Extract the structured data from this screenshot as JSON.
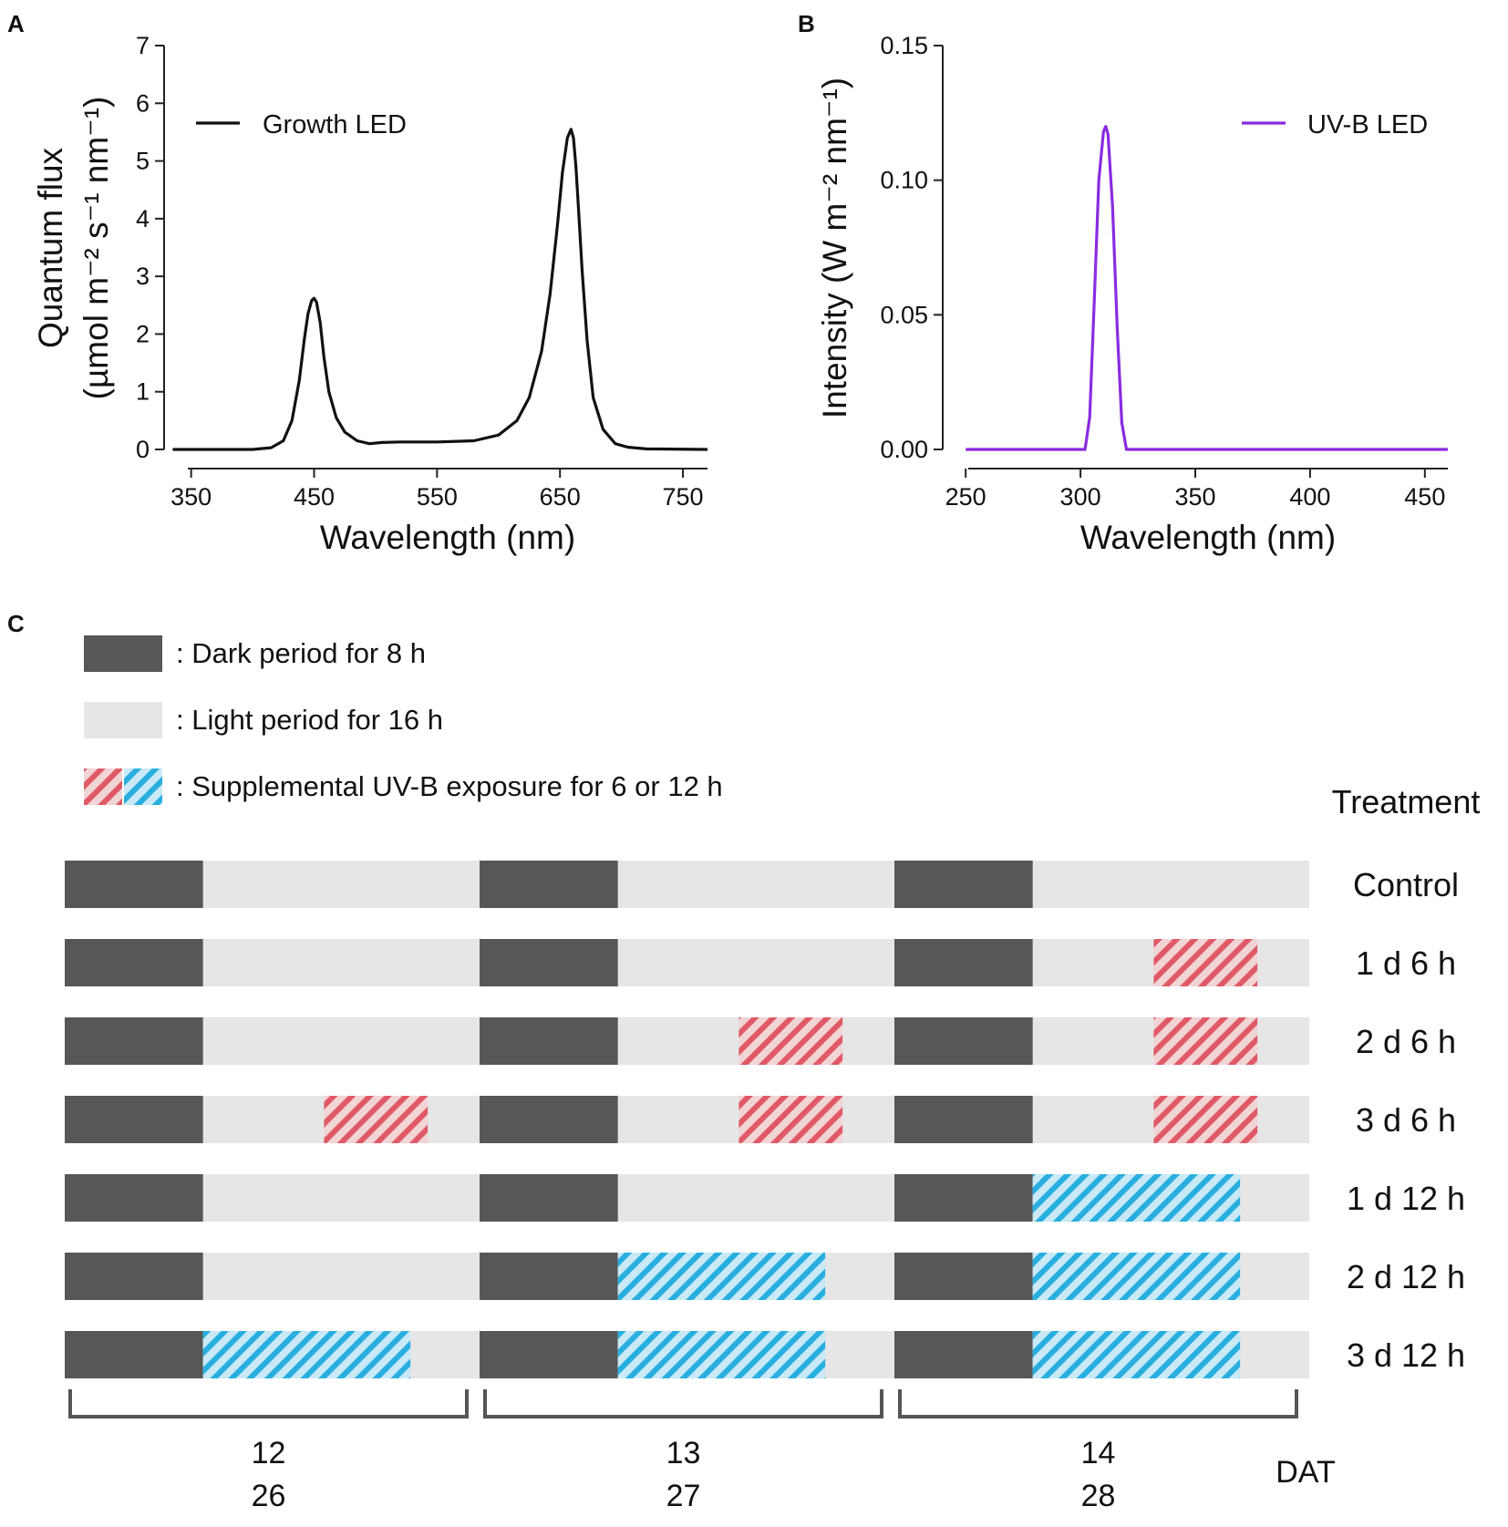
{
  "chart_data": [
    {
      "panel": "A",
      "type": "line",
      "xlabel": "Wavelength (nm)",
      "ylabel_line1": "Quantum flux",
      "ylabel_line2": "(µmol m⁻² s⁻¹ nm⁻¹)",
      "xlim": [
        328,
        770
      ],
      "ylim": [
        0,
        7
      ],
      "xticks": [
        "350",
        "450",
        "550",
        "650",
        "750"
      ],
      "yticks": [
        "0",
        "1",
        "2",
        "3",
        "4",
        "5",
        "6",
        "7"
      ],
      "legend": "Growth LED",
      "legend_position": "top-left",
      "color": "#111111",
      "series": [
        {
          "name": "Growth LED",
          "x": [
            335,
            400,
            415,
            425,
            432,
            438,
            442,
            445,
            448,
            450,
            452,
            455,
            458,
            462,
            468,
            475,
            485,
            495,
            505,
            520,
            550,
            580,
            600,
            615,
            625,
            635,
            642,
            648,
            652,
            656,
            659,
            661,
            663,
            665,
            668,
            672,
            677,
            685,
            695,
            705,
            720,
            770
          ],
          "y": [
            0,
            0,
            0.03,
            0.15,
            0.5,
            1.2,
            1.9,
            2.35,
            2.58,
            2.62,
            2.55,
            2.2,
            1.6,
            1.0,
            0.55,
            0.3,
            0.15,
            0.1,
            0.12,
            0.13,
            0.13,
            0.15,
            0.25,
            0.5,
            0.9,
            1.7,
            2.7,
            3.9,
            4.8,
            5.4,
            5.55,
            5.4,
            4.9,
            4.2,
            3.1,
            1.9,
            0.9,
            0.35,
            0.1,
            0.04,
            0.01,
            0
          ]
        }
      ]
    },
    {
      "panel": "B",
      "type": "line",
      "xlabel": "Wavelength (nm)",
      "ylabel": "Intensity (W m⁻² nm⁻¹)",
      "xlim": [
        240,
        460
      ],
      "ylim": [
        0,
        0.15
      ],
      "xticks": [
        "250",
        "300",
        "350",
        "400",
        "450"
      ],
      "yticks": [
        "0.00",
        "0.05",
        "0.10",
        "0.15"
      ],
      "legend": "UV-B LED",
      "legend_position": "top-right",
      "color": "#8a2be2",
      "series": [
        {
          "name": "UV-B LED",
          "x": [
            250,
            302,
            304,
            306,
            308,
            310,
            311,
            312,
            314,
            316,
            318,
            320,
            460
          ],
          "y": [
            0,
            0,
            0.012,
            0.055,
            0.1,
            0.118,
            0.12,
            0.117,
            0.09,
            0.045,
            0.01,
            0,
            0
          ]
        }
      ]
    },
    {
      "panel": "C",
      "type": "table",
      "legend_items": [
        {
          "kind": "dark",
          "label": ": Dark period for 8 h"
        },
        {
          "kind": "light",
          "label": ": Light period for 16 h"
        },
        {
          "kind": "uvb",
          "label": ": Supplemental UV-B exposure for 6 or 12 h"
        }
      ],
      "treatment_header": "Treatment",
      "dat_label": "DAT",
      "day_groups": [
        {
          "top": "12",
          "bottom": "26"
        },
        {
          "top": "13",
          "bottom": "27"
        },
        {
          "top": "14",
          "bottom": "28"
        }
      ],
      "schedule_hours": {
        "day": 24,
        "dark": 8,
        "uvb_start": 15
      },
      "treatments": [
        {
          "label": "Control",
          "uvb_hours": 0,
          "days": [
            0,
            0,
            0
          ]
        },
        {
          "label": "1 d 6 h",
          "uvb_hours": 6,
          "days": [
            0,
            0,
            1
          ]
        },
        {
          "label": "2 d 6 h",
          "uvb_hours": 6,
          "days": [
            0,
            1,
            1
          ]
        },
        {
          "label": "3 d 6 h",
          "uvb_hours": 6,
          "days": [
            1,
            1,
            1
          ]
        },
        {
          "label": "1 d 12 h",
          "uvb_hours": 12,
          "days": [
            0,
            0,
            1
          ]
        },
        {
          "label": "2 d 12 h",
          "uvb_hours": 12,
          "days": [
            0,
            1,
            1
          ]
        },
        {
          "label": "3 d 12 h",
          "uvb_hours": 12,
          "days": [
            1,
            1,
            1
          ]
        }
      ],
      "colors": {
        "dark": "#575757",
        "light": "#e6e6e6",
        "uvb_6h": "#e05a66",
        "uvb_12h": "#29aee0",
        "bracket": "#555555"
      }
    }
  ]
}
